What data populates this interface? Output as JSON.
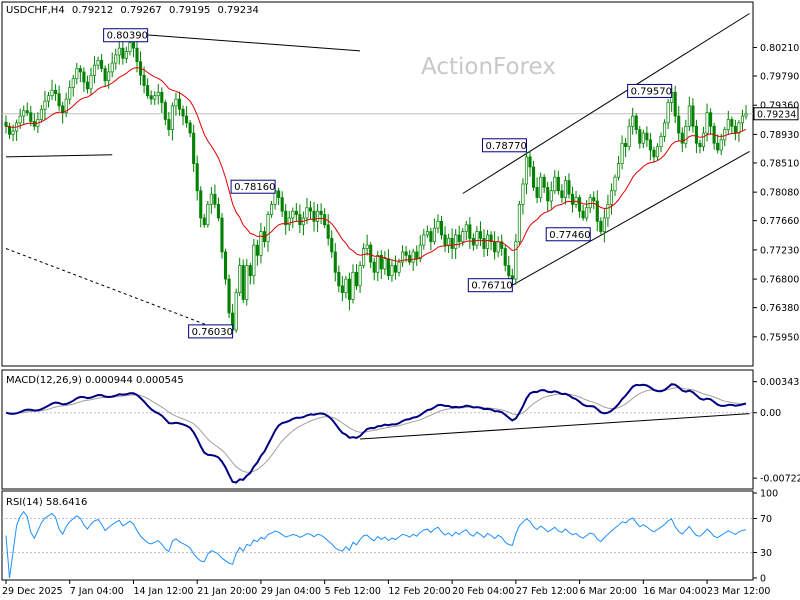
{
  "chart_data": [
    {
      "type": "candlestick",
      "title": "USDCHF,H4",
      "ohlc_header": [
        "0.79212",
        "0.79267",
        "0.79195",
        "0.79234"
      ],
      "watermark": "ActionForex",
      "ylim": [
        0.7555,
        0.8085
      ],
      "ytick_values": [
        0.8021,
        0.7979,
        0.7936,
        0.7893,
        0.7851,
        0.7808,
        0.7766,
        0.7723,
        0.768,
        0.7638,
        0.7595
      ],
      "ytick_labels": [
        "0.80210",
        "0.79790",
        "0.79360",
        "0.78930",
        "0.78510",
        "0.78080",
        "0.77660",
        "0.77230",
        "0.76800",
        "0.76380",
        "0.75950"
      ],
      "current_price": 0.79234,
      "current_price_label": "0.79234",
      "xtick_labels": [
        "29 Dec 2025",
        "7 Jan 04:00",
        "14 Jan 12:00",
        "21 Jan 20:00",
        "29 Jan 04:00",
        "5 Feb 12:00",
        "12 Feb 20:00",
        "20 Feb 04:00",
        "27 Feb 12:00",
        "6 Mar 20:00",
        "16 Mar 04:00",
        "23 Mar 12:00"
      ],
      "xtick_index": [
        0,
        18,
        36,
        54,
        72,
        90,
        108,
        126,
        144,
        162,
        180,
        198
      ],
      "bar_count": 210,
      "close_series": [
        0.7905,
        0.7893,
        0.7898,
        0.791,
        0.792,
        0.7928,
        0.7925,
        0.7912,
        0.7905,
        0.7915,
        0.793,
        0.7942,
        0.795,
        0.7958,
        0.7953,
        0.7935,
        0.7925,
        0.7945,
        0.7962,
        0.7975,
        0.799,
        0.7985,
        0.797,
        0.796,
        0.798,
        0.7995,
        0.8002,
        0.799,
        0.7972,
        0.7985,
        0.7998,
        0.801,
        0.802,
        0.8005,
        0.8015,
        0.8028,
        0.802,
        0.8,
        0.798,
        0.7965,
        0.795,
        0.7945,
        0.795,
        0.7955,
        0.794,
        0.7915,
        0.79,
        0.7935,
        0.7945,
        0.793,
        0.792,
        0.791,
        0.7895,
        0.785,
        0.781,
        0.777,
        0.776,
        0.779,
        0.7805,
        0.779,
        0.777,
        0.772,
        0.768,
        0.763,
        0.7605,
        0.766,
        0.77,
        0.765,
        0.77,
        0.7685,
        0.773,
        0.7715,
        0.775,
        0.7735,
        0.7775,
        0.779,
        0.781,
        0.78,
        0.778,
        0.776,
        0.777,
        0.778,
        0.7775,
        0.776,
        0.777,
        0.7785,
        0.778,
        0.7765,
        0.778,
        0.7775,
        0.776,
        0.774,
        0.772,
        0.769,
        0.767,
        0.766,
        0.768,
        0.765,
        0.769,
        0.767,
        0.77,
        0.7725,
        0.773,
        0.7705,
        0.769,
        0.7715,
        0.7695,
        0.771,
        0.7685,
        0.77,
        0.769,
        0.7705,
        0.772,
        0.7715,
        0.7705,
        0.772,
        0.771,
        0.773,
        0.7745,
        0.775,
        0.7735,
        0.7755,
        0.7765,
        0.7745,
        0.773,
        0.774,
        0.7725,
        0.7745,
        0.7735,
        0.775,
        0.776,
        0.774,
        0.773,
        0.775,
        0.774,
        0.7725,
        0.7745,
        0.7735,
        0.772,
        0.7735,
        0.7725,
        0.77,
        0.7685,
        0.768,
        0.7735,
        0.779,
        0.782,
        0.786,
        0.7845,
        0.7815,
        0.78,
        0.783,
        0.7815,
        0.7795,
        0.781,
        0.783,
        0.781,
        0.78,
        0.7825,
        0.7805,
        0.779,
        0.78,
        0.778,
        0.777,
        0.7785,
        0.78,
        0.7795,
        0.7765,
        0.775,
        0.777,
        0.779,
        0.781,
        0.783,
        0.785,
        0.788,
        0.7875,
        0.7905,
        0.792,
        0.79,
        0.788,
        0.7895,
        0.7885,
        0.787,
        0.786,
        0.7875,
        0.789,
        0.791,
        0.794,
        0.7955,
        0.792,
        0.7895,
        0.788,
        0.7905,
        0.7935,
        0.7905,
        0.788,
        0.7875,
        0.7895,
        0.7925,
        0.7905,
        0.788,
        0.787,
        0.7885,
        0.79,
        0.7915,
        0.7905,
        0.7895,
        0.791,
        0.792,
        0.7923
      ],
      "ma_color": "#e00000",
      "candle_color": "#008000",
      "annotations": [
        {
          "text": "0.80390",
          "bar": 40,
          "price": 0.8039
        },
        {
          "text": "0.76030",
          "bar": 64,
          "price": 0.7603
        },
        {
          "text": "0.78160",
          "bar": 76,
          "price": 0.7816
        },
        {
          "text": "0.76710",
          "bar": 143,
          "price": 0.7671
        },
        {
          "text": "0.78770",
          "bar": 147,
          "price": 0.7877
        },
        {
          "text": "0.77460",
          "bar": 165,
          "price": 0.7746
        },
        {
          "text": "0.79570",
          "bar": 188,
          "price": 0.7957
        }
      ]
    },
    {
      "type": "line",
      "title": "MACD(12,26,9) 0.000944 0.000545",
      "ylim": [
        -0.0082,
        0.0045
      ],
      "ytick_values": [
        0.003432,
        0.0,
        -0.007223
      ],
      "ytick_labels": [
        "0.003432",
        "0.00",
        "-0.007223"
      ],
      "current_marker_label": "0.00",
      "series": [
        {
          "role": "macd",
          "color": "#000080"
        },
        {
          "role": "signal",
          "color": "#a0a0a0"
        }
      ]
    },
    {
      "type": "line",
      "title": "RSI(14) 58.6416",
      "ylim": [
        0,
        100
      ],
      "ytick_values": [
        100,
        70,
        30,
        0
      ],
      "ytick_labels": [
        "100",
        "70",
        "30",
        "0"
      ],
      "series": [
        {
          "role": "rsi",
          "color": "#1e90ff"
        }
      ]
    }
  ]
}
